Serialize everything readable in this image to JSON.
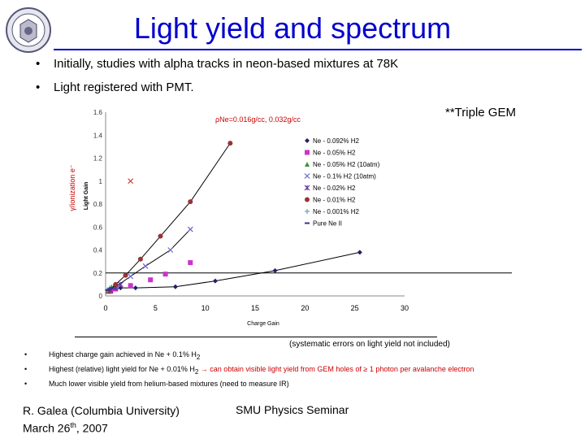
{
  "slide": {
    "title": "Light yield and spectrum",
    "bullets": [
      "Initially, studies with alpha tracks in neon-based mixtures at 78K",
      "Light registered with PMT."
    ],
    "gem_note": "**Triple GEM",
    "systematic_note": "(systematic errors on light yield not included)",
    "small_bullets": {
      "b1_prefix": "Highest charge gain achieved in Ne + 0.1% H",
      "b1_sub": "2",
      "b2_prefix": "Highest (relative) light yield for Ne + 0.01% H",
      "b2_sub": "2",
      "b2_red": " → can obtain visible light yield from GEM holes of ≥ 1 photon per avalanche electron",
      "b3": "Much lower visible yield from helium-based mixtures (need to measure IR)"
    },
    "footer": {
      "author": "R. Galea (Columbia University)",
      "date_prefix": "March 26",
      "date_sup": "th",
      "date_suffix": ", 2007",
      "seminar": "SMU Physics Seminar"
    },
    "bullet_symbol": "•"
  },
  "chart_data": {
    "type": "scatter",
    "xlabel": "Charge Gain",
    "ylabel": "Light Gain",
    "ylabel_outer": "γ/ionization e⁻",
    "density_note": "ρNe=0.016g/cc, 0.032g/cc",
    "xlim": [
      0,
      30
    ],
    "ylim": [
      0,
      1.6
    ],
    "xticks": [
      "0",
      "5",
      "10",
      "15",
      "20",
      "25",
      "30"
    ],
    "yticks": [
      "0",
      "0.2",
      "0.4",
      "0.6",
      "0.8",
      "1",
      "1.2",
      "1.4",
      "1.6"
    ],
    "reference_line_y": 0.2,
    "series": [
      {
        "name": "Ne - 0.092% H2",
        "color": "#1f1f6f",
        "marker": "diamond",
        "line": true,
        "x": [
          0.5,
          1.5,
          3,
          7,
          11,
          17,
          25.5
        ],
        "y": [
          0.05,
          0.07,
          0.07,
          0.08,
          0.13,
          0.22,
          0.38
        ]
      },
      {
        "name": "Ne - 0.05% H2",
        "color": "#cc33cc",
        "marker": "square",
        "line": false,
        "x": [
          0.5,
          1,
          2.5,
          4.5,
          6,
          8.5
        ],
        "y": [
          0.04,
          0.06,
          0.09,
          0.14,
          0.19,
          0.29
        ]
      },
      {
        "name": "Ne - 0.05% H2 (10atm)",
        "color": "#339933",
        "marker": "triangle",
        "line": false,
        "x": [
          0.2,
          0.4,
          0.6
        ],
        "y": [
          0.04,
          0.06,
          0.08
        ]
      },
      {
        "name": "Ne - 0.1% H2 (10atm)",
        "color": "#6666cc",
        "marker": "x",
        "line": true,
        "x": [
          0.3,
          1,
          2.5,
          4,
          6.5,
          8.5
        ],
        "y": [
          0.04,
          0.08,
          0.17,
          0.26,
          0.4,
          0.58
        ]
      },
      {
        "name": "Ne - 0.02% H2",
        "color": "#663399",
        "marker": "star",
        "line": false,
        "x": [
          0.5,
          1,
          1.5
        ],
        "y": [
          0.05,
          0.07,
          0.1
        ]
      },
      {
        "name": "Ne - 0.01% H2",
        "color": "#993333",
        "marker": "circle",
        "line": true,
        "x": [
          0.3,
          1,
          2,
          3.5,
          5.5,
          8.5,
          12.5
        ],
        "y": [
          0.04,
          0.1,
          0.18,
          0.32,
          0.52,
          0.82,
          1.33
        ]
      },
      {
        "name": "Ne - 0.001% H2",
        "color": "#66aaaa",
        "marker": "plus",
        "line": false,
        "x": [
          0.2,
          0.4
        ],
        "y": [
          0.05,
          0.07
        ]
      },
      {
        "name": "Pure Ne II",
        "color": "#333399",
        "marker": "dash",
        "line": false,
        "x": [
          0.2,
          0.4,
          0.6
        ],
        "y": [
          0.05,
          0.06,
          0.07
        ]
      }
    ],
    "extra_points": [
      {
        "x": 2.5,
        "y": 1.0,
        "marker": "x",
        "color": "#cc3333"
      }
    ],
    "legend_position": "right"
  }
}
